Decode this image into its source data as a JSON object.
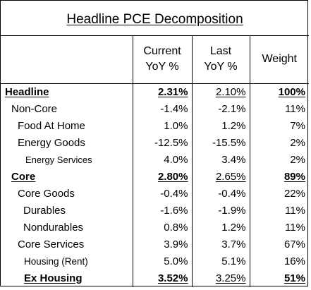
{
  "title": "Headline PCE Decomposition",
  "columns": {
    "current": [
      "Current",
      "YoY %"
    ],
    "last": [
      "Last",
      "YoY %"
    ],
    "weight": "Weight"
  },
  "rows": [
    {
      "label": "Headline",
      "current": "2.31%",
      "last": "2.10%",
      "weight": "100%"
    },
    {
      "label": "Non-Core",
      "current": "-1.4%",
      "last": "-2.1%",
      "weight": "11%"
    },
    {
      "label": "Food At Home",
      "current": "1.0%",
      "last": "1.2%",
      "weight": "7%"
    },
    {
      "label": "Energy Goods",
      "current": "-12.5%",
      "last": "-15.5%",
      "weight": "2%"
    },
    {
      "label": "Energy Services",
      "current": "4.0%",
      "last": "3.4%",
      "weight": "2%"
    },
    {
      "label": "Core",
      "current": "2.80%",
      "last": "2.65%",
      "weight": "89%"
    },
    {
      "label": "Core Goods",
      "current": "-0.4%",
      "last": "-0.4%",
      "weight": "22%"
    },
    {
      "label": "Durables",
      "current": "-1.6%",
      "last": "-1.9%",
      "weight": "11%"
    },
    {
      "label": "Nondurables",
      "current": "0.8%",
      "last": "1.2%",
      "weight": "11%"
    },
    {
      "label": "Core Services",
      "current": "3.9%",
      "last": "3.7%",
      "weight": "67%"
    },
    {
      "label": "Housing (Rent)",
      "current": "5.0%",
      "last": "5.1%",
      "weight": "16%"
    },
    {
      "label": "Ex Housing",
      "current": "3.52%",
      "last": "3.25%",
      "weight": "51%"
    }
  ]
}
